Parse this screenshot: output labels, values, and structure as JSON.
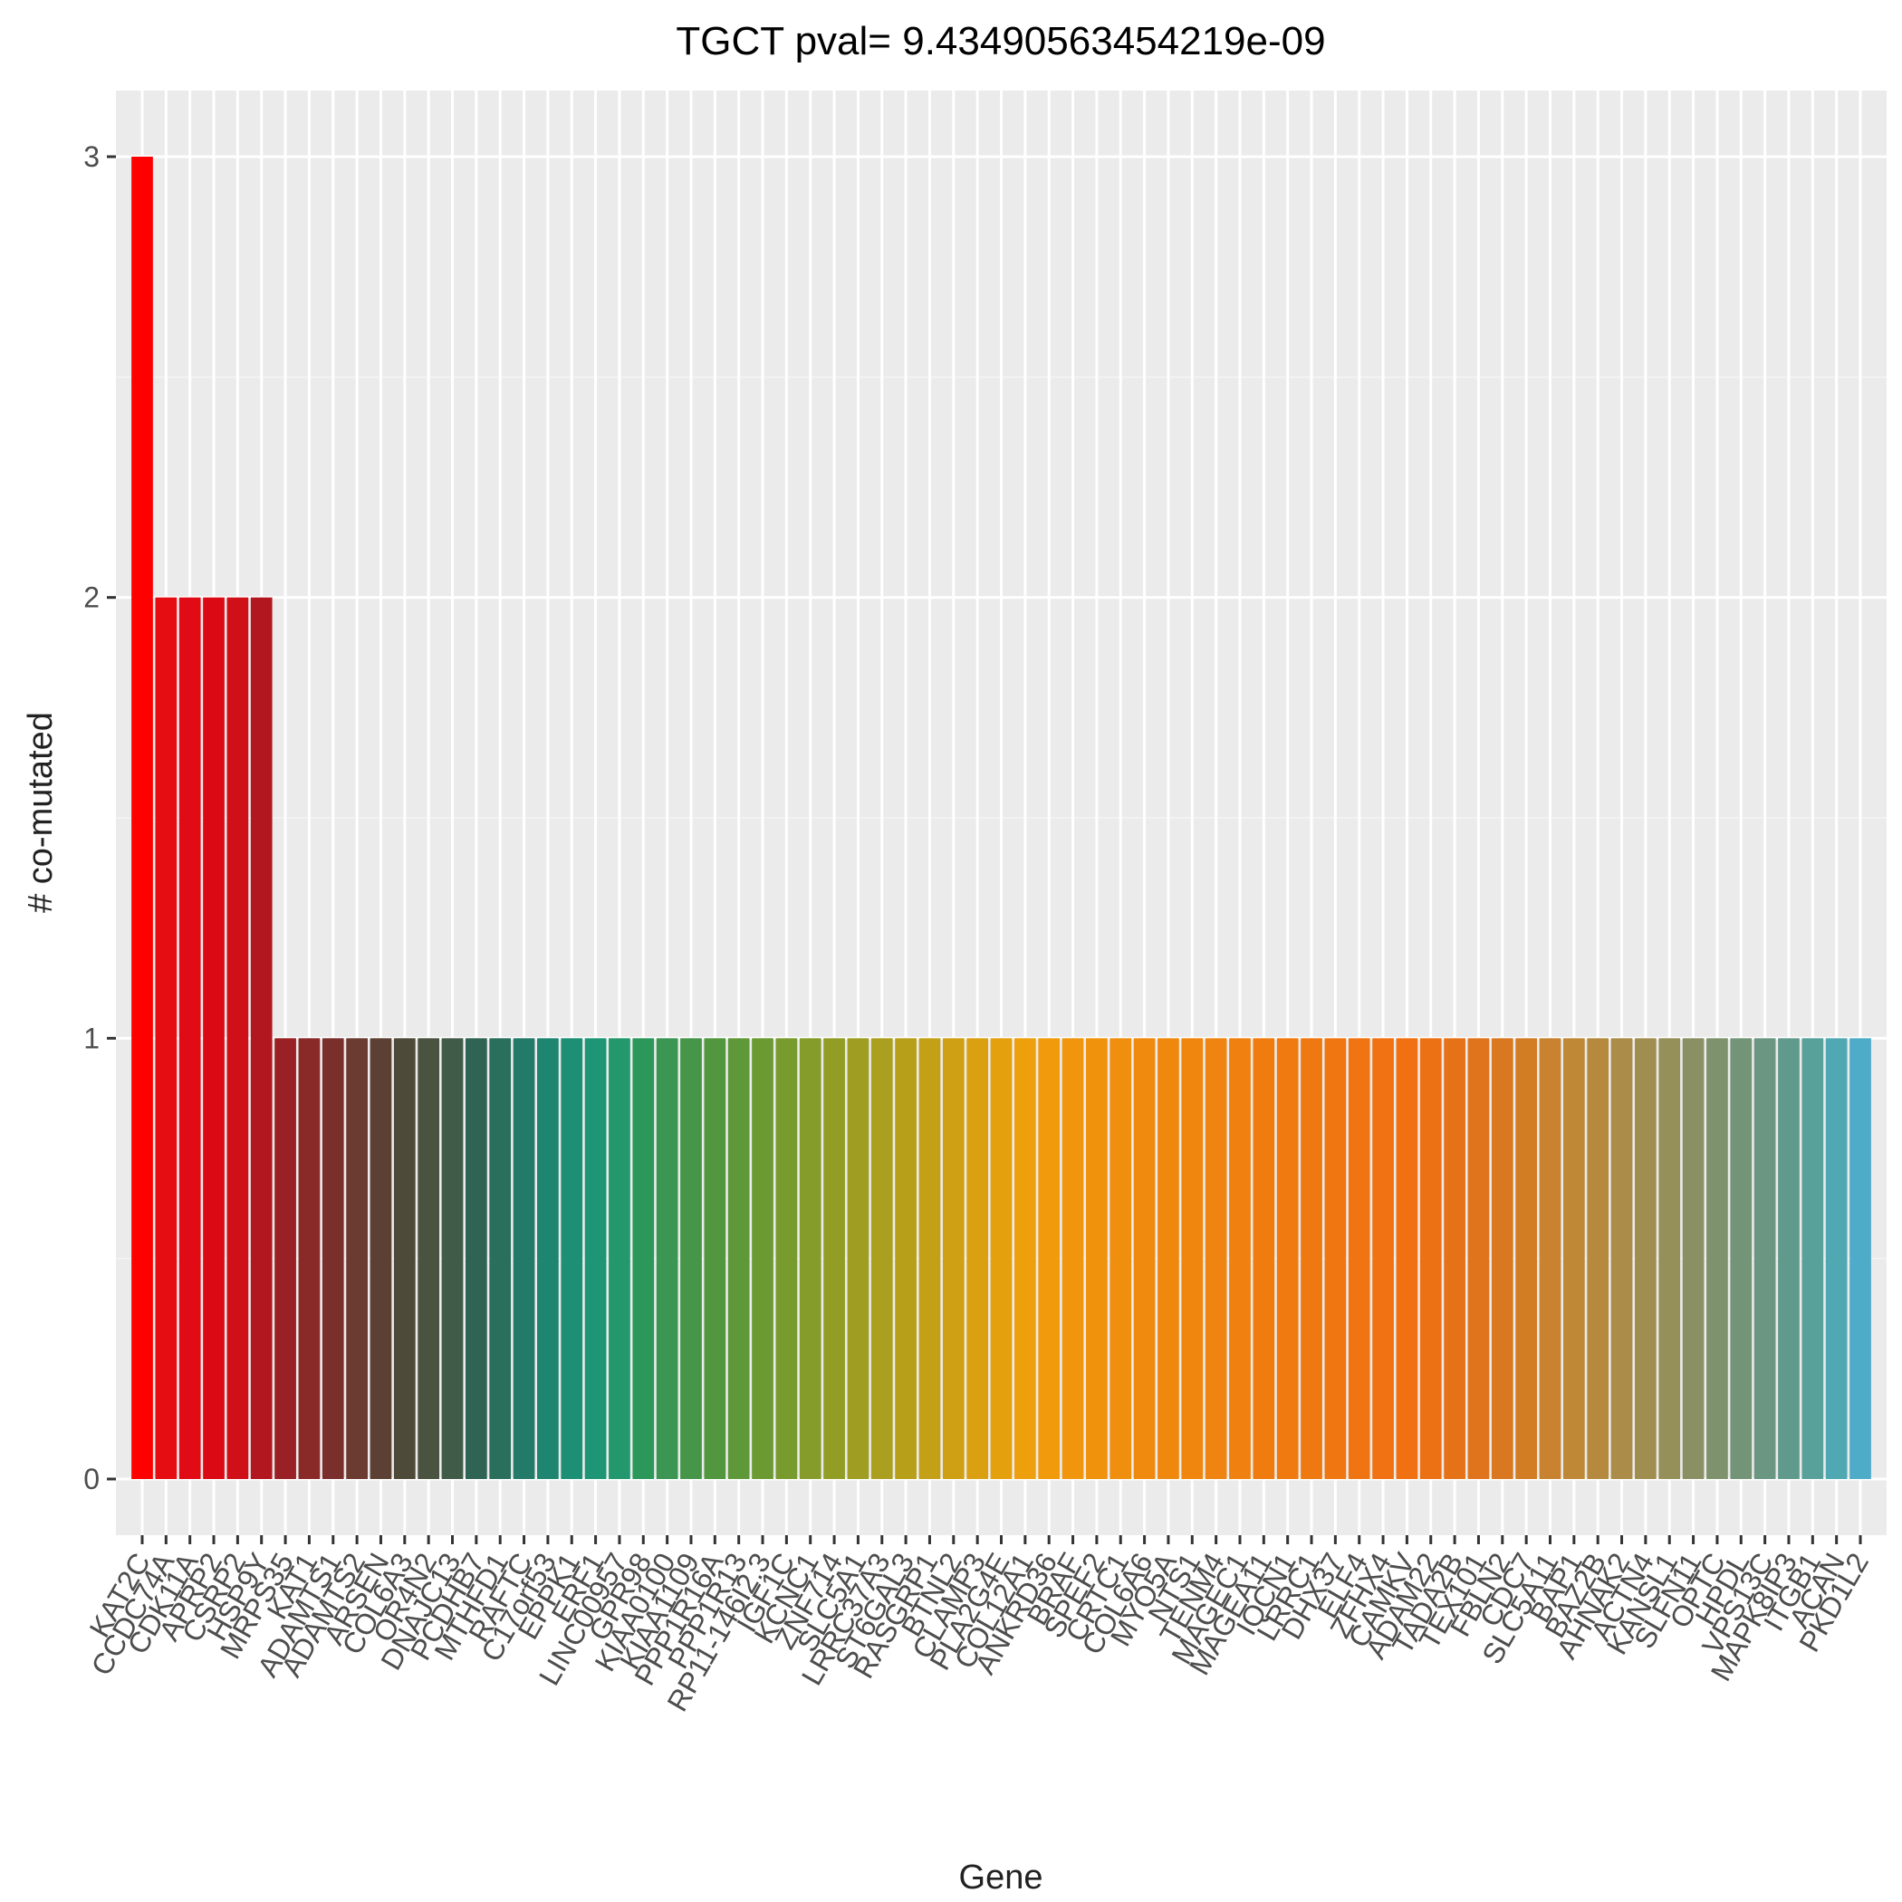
{
  "chart_data": {
    "type": "bar",
    "title": "TGCT pval= 9.43490563454219e-09",
    "xlabel": "Gene",
    "ylabel": "# co-mutated",
    "ylim": [
      -0.15,
      3.15
    ],
    "yticks": [
      0,
      1,
      2,
      3
    ],
    "grid": true,
    "legend": "none",
    "categories": [
      "KAT2C",
      "CCDC74A",
      "CDK11A",
      "APRP2",
      "CSRP2",
      "HSP9Y",
      "MRPS35",
      "KAT1",
      "ADAMTS1",
      "ADAMTS2",
      "ARSEN",
      "COL6A3",
      "OR4N2",
      "DNAJC13",
      "PCDHB7",
      "MTHFD1",
      "RAFTC",
      "C17orf53",
      "EPPK1",
      "ERF1",
      "LINC00957",
      "GPR98",
      "KIAA0100",
      "KIAA1109",
      "PPP1R16A",
      "PPP1R13",
      "RP11-146I2.3",
      "IGF1C",
      "KCNC1",
      "ZNF714",
      "SLC5A1",
      "LRRC37A3",
      "ST6GAL3",
      "RASGRP1",
      "BTNL2",
      "CLAMP3",
      "PLA2G4E",
      "COL12A1",
      "ANKRD36",
      "BRAF",
      "SPEF2",
      "CRTC1",
      "COL6A6",
      "MYO5A",
      "NTS1",
      "TENM4",
      "MAGEC1",
      "MAGEA11",
      "IQCN1",
      "LRRC1",
      "DHX37",
      "ELF4",
      "ZFHX4",
      "CAMKV",
      "ADAM22",
      "TADA2B",
      "TEX101",
      "FBLN2",
      "CDC7",
      "SLC5A11",
      "BAP1",
      "BAZ2B",
      "AHNAK2",
      "ACTN4",
      "KANSL1",
      "SLFN11",
      "OPTC",
      "HPDL",
      "VPS13C",
      "MAPK8IP3",
      "ITGB1",
      "ACAN",
      "PKD1L2"
    ],
    "values": [
      3,
      2,
      2,
      2,
      2,
      2,
      1,
      1,
      1,
      1,
      1,
      1,
      1,
      1,
      1,
      1,
      1,
      1,
      1,
      1,
      1,
      1,
      1,
      1,
      1,
      1,
      1,
      1,
      1,
      1,
      1,
      1,
      1,
      1,
      1,
      1,
      1,
      1,
      1,
      1,
      1,
      1,
      1,
      1,
      1,
      1,
      1,
      1,
      1,
      1,
      1,
      1,
      1,
      1,
      1,
      1,
      1,
      1,
      1,
      1,
      1,
      1,
      1,
      1,
      1,
      1,
      1,
      1,
      1,
      1,
      1,
      1,
      1
    ],
    "colors": [
      "#ff0000",
      "#e60d12",
      "#e00b14",
      "#db0914",
      "#d01018",
      "#b2161f",
      "#992025",
      "#8a2a28",
      "#7a2f2c",
      "#6b3a30",
      "#5c4034",
      "#4e4a3a",
      "#4a5240",
      "#405c48",
      "#2f6454",
      "#2a6f5c",
      "#247a68",
      "#1e8670",
      "#1c8f74",
      "#1e9676",
      "#22986c",
      "#2b985a",
      "#3a9652",
      "#469548",
      "#52963e",
      "#5f9838",
      "#6c9a32",
      "#789b2e",
      "#859c2a",
      "#929d26",
      "#9f9e22",
      "#aa9f1e",
      "#b79f1a",
      "#c4a016",
      "#cf9f14",
      "#daa012",
      "#e5a00e",
      "#ee9f0c",
      "#f09a0c",
      "#f0950c",
      "#f0920c",
      "#f08f0e",
      "#f08a0e",
      "#f0880e",
      "#f0860e",
      "#f08410",
      "#f08010",
      "#f07c10",
      "#f07a10",
      "#f07810",
      "#f07612",
      "#f07412",
      "#f07212",
      "#f07012",
      "#ec7114",
      "#e67218",
      "#e0741c",
      "#d97820",
      "#d27c24",
      "#c88230",
      "#bf8836",
      "#b58a3e",
      "#ab8c48",
      "#a08e50",
      "#958f5a",
      "#8a9064",
      "#7f926e",
      "#749478",
      "#6a9682",
      "#609a8c",
      "#58a09a",
      "#50a8b2",
      "#4eacc8"
    ]
  }
}
